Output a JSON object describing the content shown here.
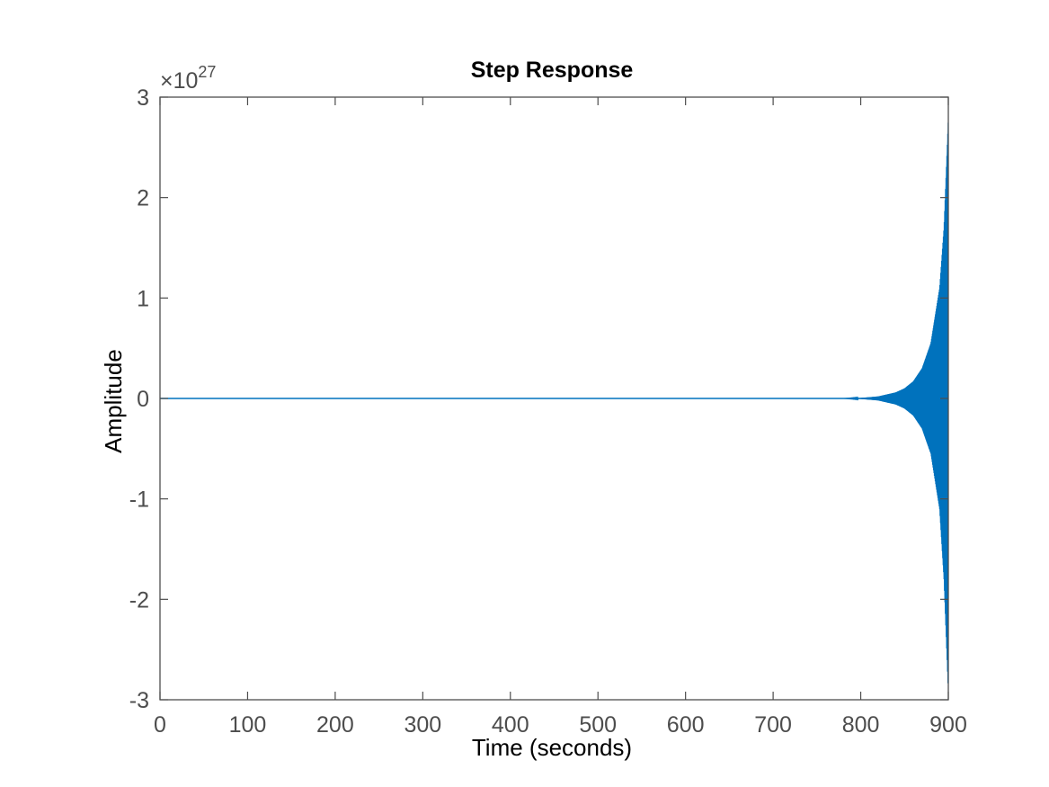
{
  "chart_data": {
    "type": "line",
    "title": "Step Response",
    "xlabel": "Time (seconds)",
    "ylabel": "Amplitude",
    "xlim": [
      0,
      900
    ],
    "ylim": [
      -3,
      3
    ],
    "y_exponent_prefix": "×10",
    "y_exponent": "27",
    "y_scale_factor": 1e+27,
    "x_ticks": [
      0,
      100,
      200,
      300,
      400,
      500,
      600,
      700,
      800,
      900
    ],
    "x_tick_labels": [
      "0",
      "100",
      "200",
      "300",
      "400",
      "500",
      "600",
      "700",
      "800",
      "900"
    ],
    "y_ticks": [
      -3,
      -2,
      -1,
      0,
      1,
      2,
      3
    ],
    "y_tick_labels": [
      "-3",
      "-2",
      "-1",
      "0",
      "1",
      "2",
      "3"
    ],
    "grid": false,
    "series": [
      {
        "color": "#0072bd",
        "description_points": "oscillating envelope (amplitude x1e27): flat at 0 until ~790 s, then exponentially growing oscillation",
        "envelope": {
          "x": [
            0,
            780,
            800,
            820,
            840,
            850,
            860,
            870,
            880,
            890,
            895,
            900
          ],
          "upper": [
            0,
            0,
            0.005,
            0.02,
            0.06,
            0.1,
            0.17,
            0.3,
            0.55,
            1.1,
            1.7,
            2.8
          ],
          "lower": [
            0,
            0,
            -0.005,
            -0.02,
            -0.06,
            -0.1,
            -0.17,
            -0.3,
            -0.55,
            -1.1,
            -1.8,
            -2.95
          ]
        }
      }
    ]
  }
}
